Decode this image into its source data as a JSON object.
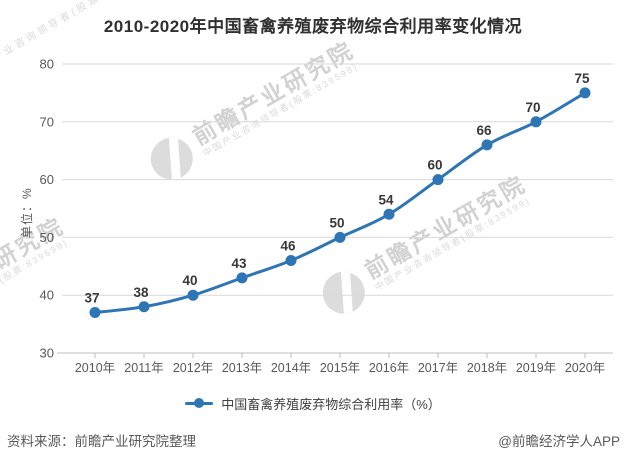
{
  "title": "2010-2020年中国畜禽养殖废弃物综合利用率变化情况",
  "y_axis_unit": "单位：%",
  "legend": {
    "label": "中国畜禽养殖废弃物综合利用率（%）"
  },
  "footer": {
    "source": "资料来源：前瞻产业研究院整理",
    "credit": "@前瞻经济学人APP"
  },
  "watermark": {
    "brand": "前瞻产业研究院",
    "tagline": "中国产业咨询领导者(股票:839599)"
  },
  "colors": {
    "line": "#2E75B6",
    "marker": "#2E75B6",
    "grid": "#D9D9D9",
    "axis": "#BFBFBF",
    "tick_label": "#595959",
    "data_label": "#383838",
    "title": "#303030",
    "watermark": "#d5d5d5"
  },
  "chart_data": {
    "type": "line",
    "title": "2010-2020年中国畜禽养殖废弃物综合利用率变化情况",
    "categories": [
      "2010年",
      "2011年",
      "2012年",
      "2013年",
      "2014年",
      "2015年",
      "2016年",
      "2017年",
      "2018年",
      "2019年",
      "2020年"
    ],
    "series": [
      {
        "name": "中国畜禽养殖废弃物综合利用率（%）",
        "values": [
          37,
          38,
          40,
          43,
          46,
          50,
          54,
          60,
          66,
          70,
          75
        ]
      }
    ],
    "xlabel": "",
    "ylabel": "单位：%",
    "ylim": [
      30,
      80
    ],
    "ytick_step": 10,
    "grid": true,
    "legend_position": "bottom",
    "marker": "circle",
    "data_labels": true,
    "smooth": true
  }
}
